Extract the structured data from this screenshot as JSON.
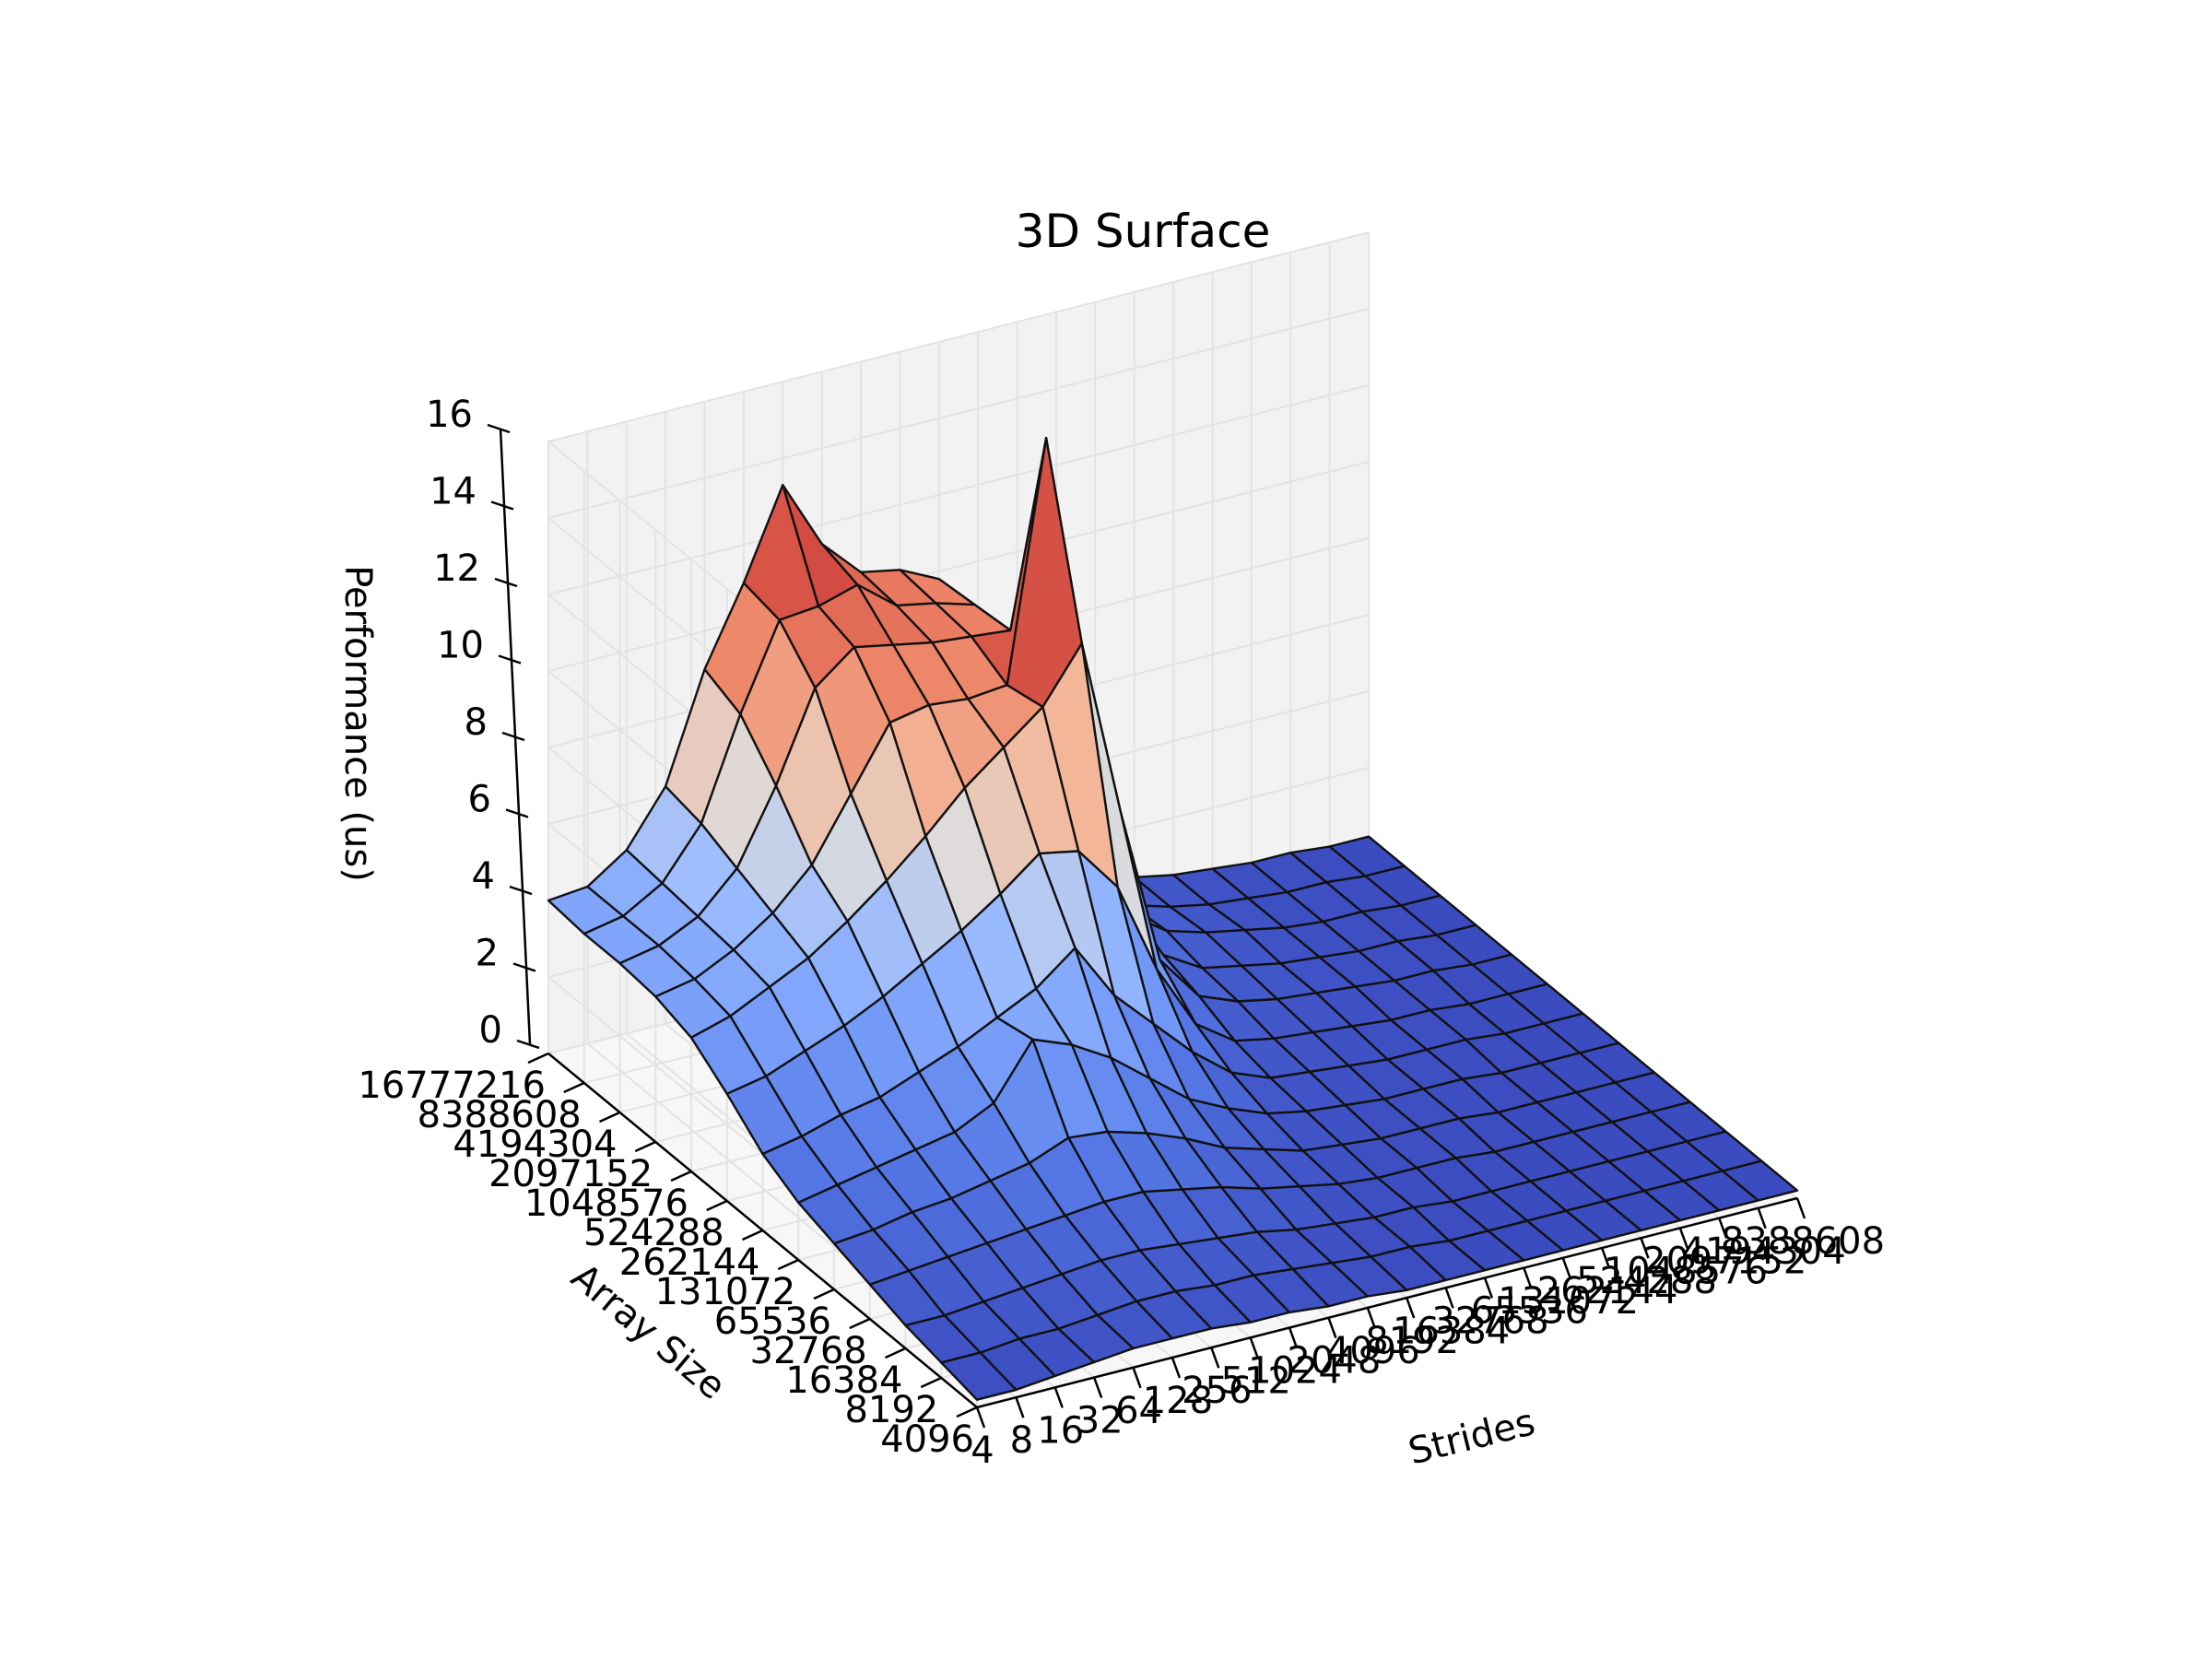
{
  "chart_data": {
    "type": "surface3d",
    "title": "3D Surface",
    "xlabel": "Strides",
    "ylabel": "Array Size",
    "zlabel": "Performance (us)",
    "zlim": [
      0,
      16
    ],
    "grid": true,
    "colormap": "coolwarm",
    "x_ticks": [
      "4",
      "8",
      "16",
      "32",
      "64",
      "128",
      "256",
      "512",
      "1024",
      "2048",
      "4096",
      "8192",
      "16384",
      "32768",
      "65536",
      "131072",
      "262144",
      "524288",
      "1048576",
      "2097152",
      "4194304",
      "8388608"
    ],
    "y_ticks": [
      "4096",
      "8192",
      "16384",
      "32768",
      "65536",
      "131072",
      "262144",
      "524288",
      "1048576",
      "2097152",
      "4194304",
      "8388608",
      "16777216"
    ],
    "z_ticks": [
      "0",
      "2",
      "4",
      "6",
      "8",
      "10",
      "12",
      "14",
      "16"
    ],
    "z_values": [
      [
        0.2,
        0.2,
        0.3,
        0.4,
        0.5,
        0.5,
        0.5,
        0.4,
        0.4,
        0.3,
        0.3,
        0.2,
        0.2,
        0.2,
        0.2,
        0.2,
        0.2,
        0.2,
        0.2,
        0.2,
        0.2,
        0.2
      ],
      [
        0.4,
        0.4,
        0.5,
        0.5,
        0.6,
        0.7,
        0.7,
        0.6,
        0.6,
        0.5,
        0.4,
        0.3,
        0.3,
        0.2,
        0.2,
        0.2,
        0.2,
        0.2,
        0.2,
        0.2,
        0.2,
        0.2
      ],
      [
        0.6,
        0.6,
        0.7,
        0.8,
        0.9,
        1.0,
        1.0,
        0.9,
        0.8,
        0.7,
        0.5,
        0.4,
        0.3,
        0.3,
        0.2,
        0.2,
        0.2,
        0.2,
        0.2,
        0.2,
        0.2,
        0.2
      ],
      [
        0.9,
        1.0,
        1.1,
        1.2,
        1.3,
        1.4,
        1.5,
        1.5,
        1.3,
        1.1,
        0.8,
        0.6,
        0.4,
        0.3,
        0.3,
        0.3,
        0.2,
        0.2,
        0.2,
        0.2,
        0.2,
        0.2
      ],
      [
        1.2,
        1.3,
        1.5,
        1.6,
        1.8,
        2.0,
        2.4,
        2.3,
        2.0,
        1.6,
        1.1,
        0.8,
        0.5,
        0.4,
        0.3,
        0.3,
        0.3,
        0.2,
        0.2,
        0.2,
        0.2,
        0.2
      ],
      [
        1.5,
        1.7,
        1.9,
        2.1,
        2.3,
        2.8,
        4.2,
        3.8,
        3.2,
        2.4,
        1.6,
        1.1,
        0.7,
        0.5,
        0.4,
        0.3,
        0.3,
        0.3,
        0.2,
        0.2,
        0.2,
        0.2
      ],
      [
        2.0,
        2.2,
        2.5,
        2.7,
        3.1,
        3.5,
        4.0,
        4.5,
        5.3,
        3.8,
        2.8,
        1.8,
        1.0,
        0.6,
        0.5,
        0.4,
        0.3,
        0.3,
        0.3,
        0.2,
        0.2,
        0.2
      ],
      [
        2.8,
        3.0,
        3.4,
        3.8,
        4.3,
        4.9,
        5.5,
        6.2,
        7.0,
        6.8,
        5.6,
        3.2,
        1.5,
        0.8,
        0.6,
        0.5,
        0.4,
        0.3,
        0.3,
        0.2,
        0.2,
        0.2
      ],
      [
        3.5,
        3.8,
        4.3,
        4.8,
        5.5,
        6.3,
        7.2,
        8.2,
        9.0,
        9.8,
        11.2,
        6.5,
        2.4,
        1.2,
        0.8,
        0.6,
        0.5,
        0.4,
        0.3,
        0.3,
        0.2,
        0.2
      ],
      [
        3.8,
        4.0,
        4.5,
        5.2,
        6.2,
        7.8,
        9.4,
        9.6,
        9.5,
        9.6,
        15.8,
        7.0,
        3.2,
        1.5,
        0.9,
        0.7,
        0.5,
        0.4,
        0.3,
        0.3,
        0.2,
        0.2
      ],
      [
        3.9,
        4.1,
        4.6,
        5.6,
        7.5,
        9.8,
        10.6,
        10.4,
        10.2,
        10.1,
        10.0,
        6.2,
        3.5,
        1.8,
        1.1,
        0.8,
        0.6,
        0.4,
        0.3,
        0.3,
        0.2,
        0.2
      ],
      [
        3.9,
        4.1,
        4.7,
        6.0,
        8.6,
        10.8,
        10.9,
        11.2,
        10.4,
        10.2,
        9.9,
        5.8,
        3.3,
        1.6,
        1.0,
        0.7,
        0.5,
        0.4,
        0.3,
        0.3,
        0.2,
        0.2
      ],
      [
        4.0,
        4.1,
        4.8,
        6.2,
        9.0,
        11.0,
        13.3,
        11.5,
        10.5,
        10.3,
        9.8,
        5.5,
        3.1,
        1.5,
        0.9,
        0.7,
        0.5,
        0.4,
        0.3,
        0.3,
        0.2,
        0.2
      ]
    ]
  }
}
